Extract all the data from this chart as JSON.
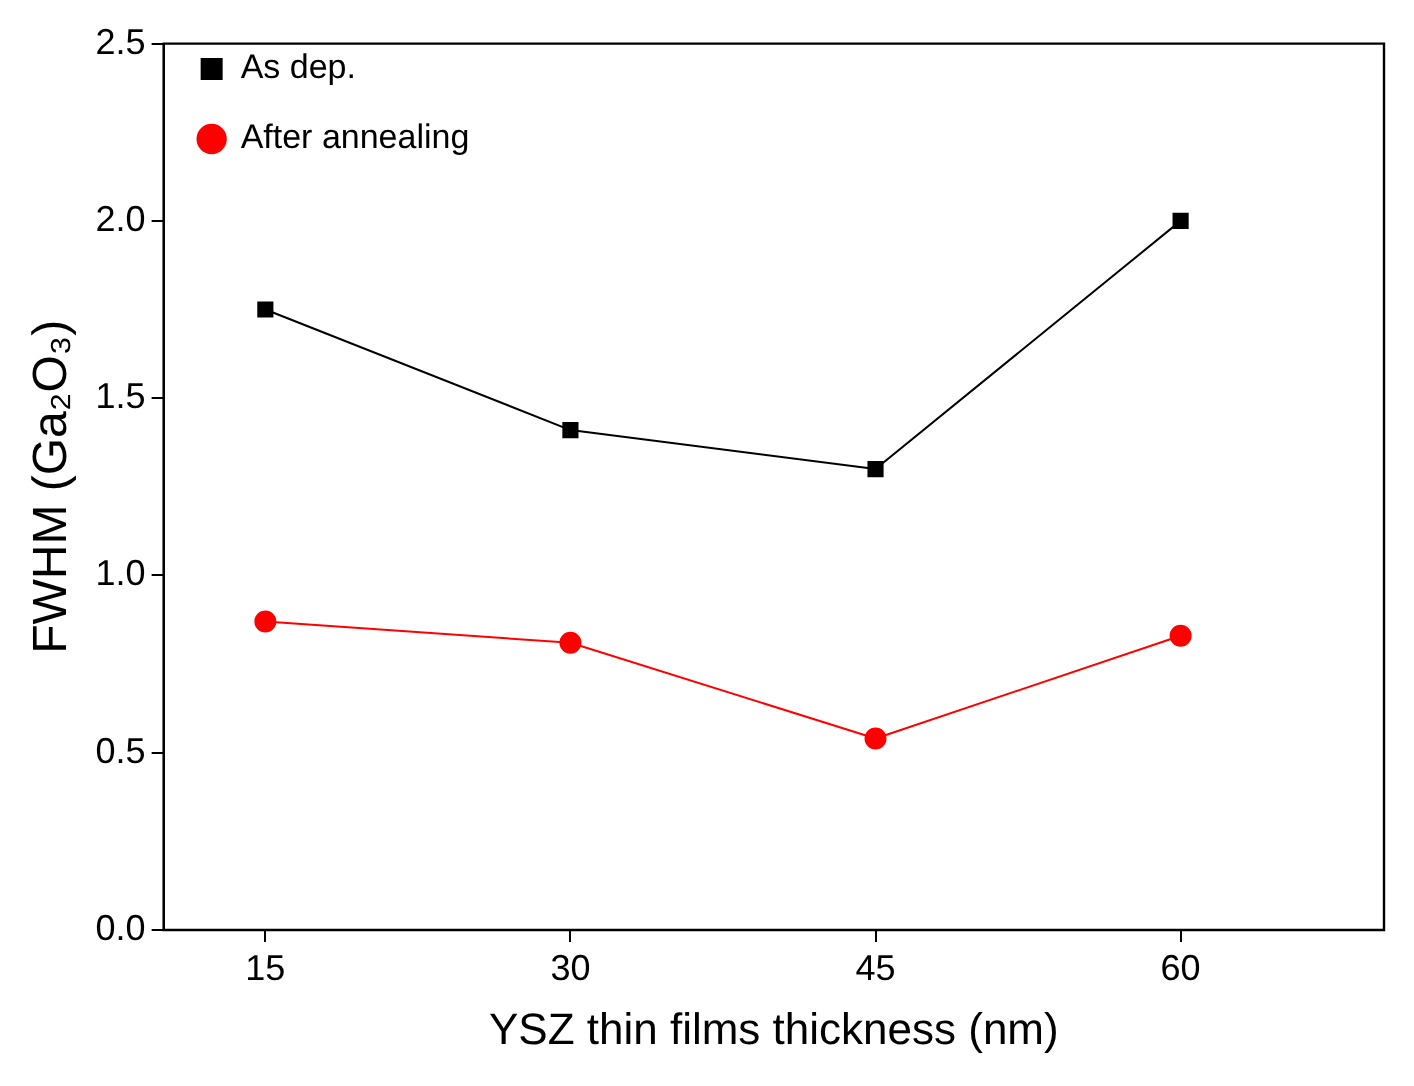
{
  "chart_data": {
    "type": "line",
    "xlabel": "YSZ thin films thickness (nm)",
    "ylabel": "FWHM (Ga₂O₃)",
    "x": [
      15,
      30,
      45,
      60
    ],
    "series": [
      {
        "name": "As dep.",
        "color": "#000000",
        "marker": "square",
        "values": [
          1.75,
          1.41,
          1.3,
          2.0
        ]
      },
      {
        "name": "After annealing",
        "color": "#ff0000",
        "marker": "circle",
        "values": [
          0.87,
          0.81,
          0.54,
          0.83
        ]
      }
    ],
    "xlim": [
      10,
      70
    ],
    "xticks": [
      15,
      30,
      45,
      60
    ],
    "ylim": [
      0,
      2.5
    ],
    "yticks": [
      {
        "value": 0,
        "label": "0.0"
      },
      {
        "value": 0.5,
        "label": "0.5"
      },
      {
        "value": 1,
        "label": "1.0"
      },
      {
        "value": 1.5,
        "label": "1.5"
      },
      {
        "value": 2,
        "label": "2.0"
      },
      {
        "value": 2.5,
        "label": "2.5"
      }
    ],
    "grid": false,
    "legend": "top left"
  }
}
